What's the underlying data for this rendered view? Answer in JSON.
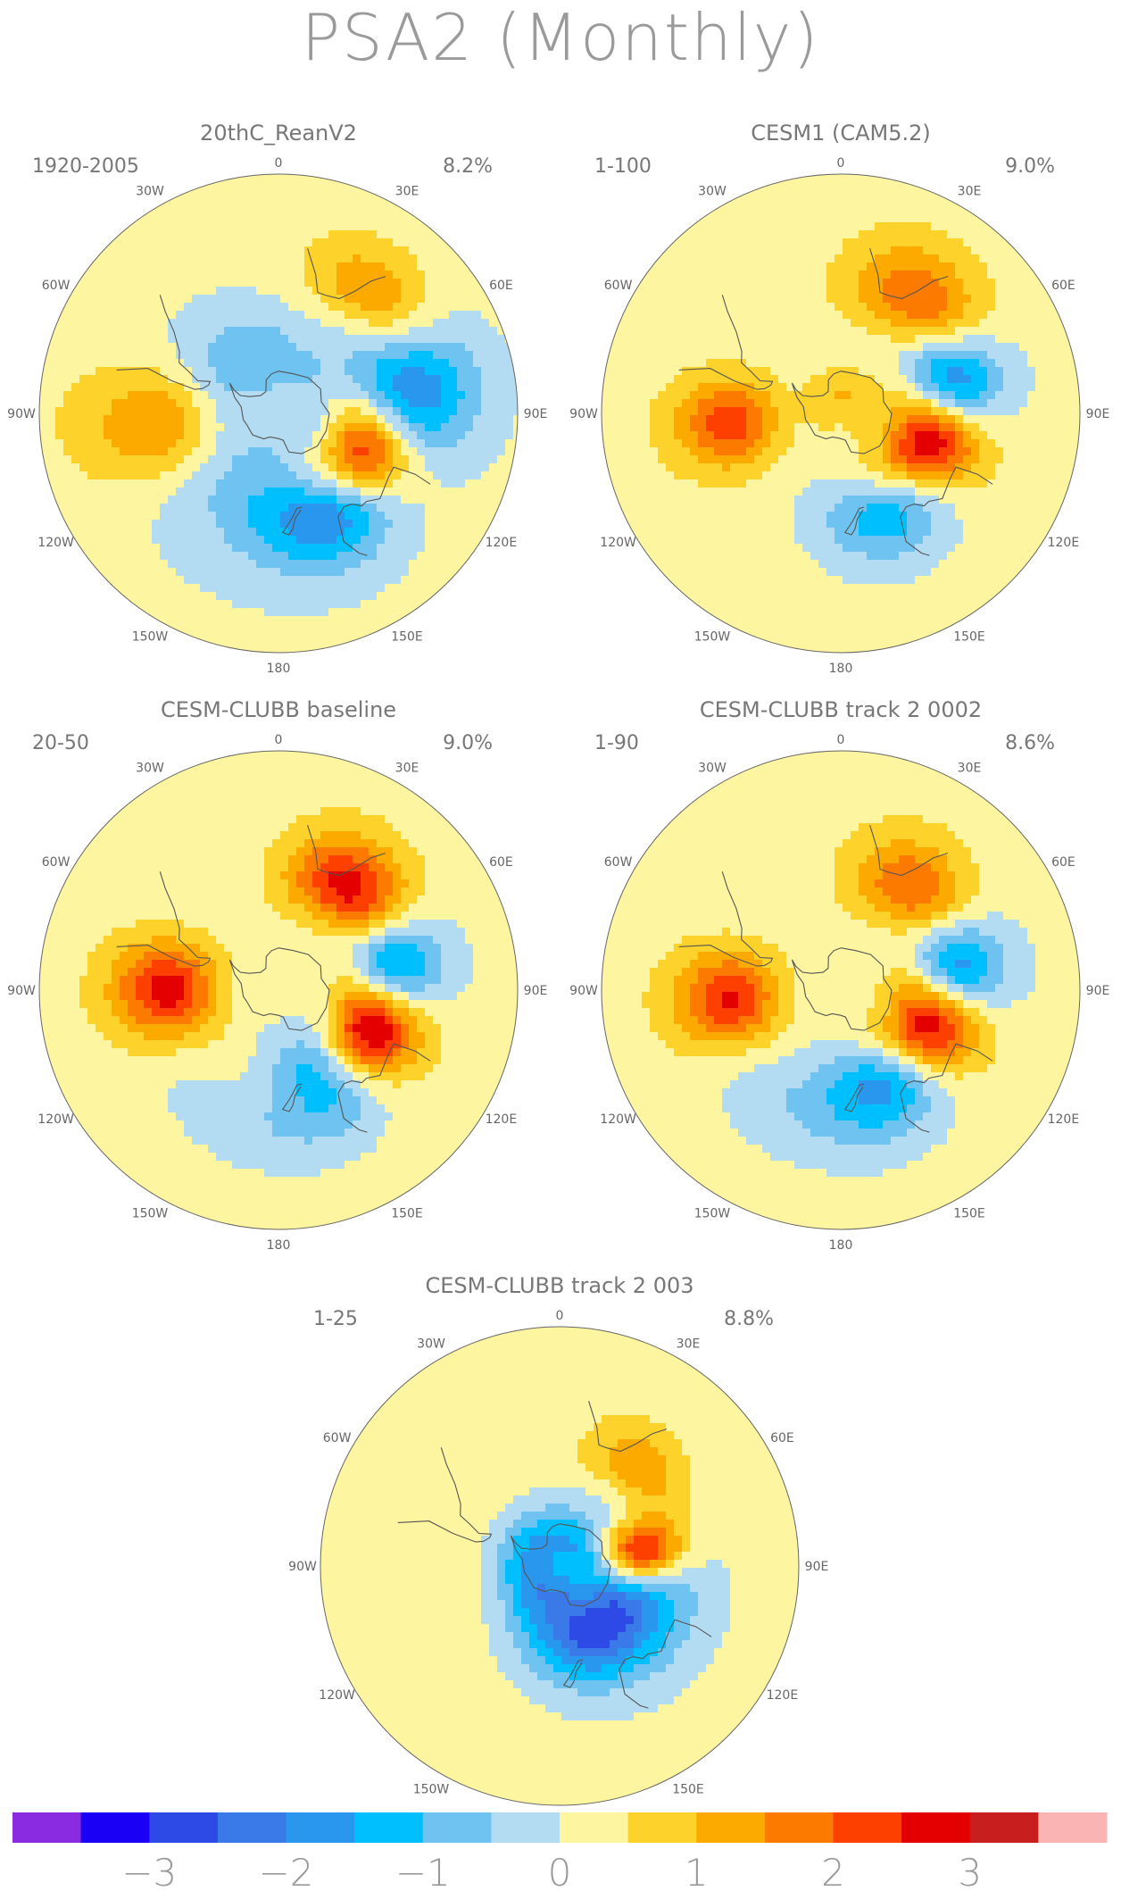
{
  "title": "PSA2 (Monthly)",
  "colors": [
    "#8a2be2",
    "#1a00f5",
    "#2d4ae6",
    "#3a7ae8",
    "#2a97ef",
    "#00bfff",
    "#6fc3f0",
    "#b3dcf2",
    "#fef5a0",
    "#fdd22a",
    "#fdaa00",
    "#fd7a00",
    "#fd3f00",
    "#e50000",
    "#c81e1e",
    "#fbb4b4"
  ],
  "colorbar": {
    "ticks": [
      "−3",
      "−2",
      "−1",
      "0",
      "1",
      "2",
      "3"
    ]
  },
  "lon_labels": [
    "0",
    "30E",
    "60E",
    "90E",
    "120E",
    "150E",
    "180",
    "150W",
    "120W",
    "90W",
    "60W",
    "30W"
  ],
  "panels": [
    {
      "title": "20thC_ReanV2",
      "period": "1920-2005",
      "pct": "8.2%",
      "blobs": [
        {
          "lon": 115,
          "lat": -45,
          "a": 3.8,
          "sx": 18,
          "sy": 13
        },
        {
          "lon": 80,
          "lat": -30,
          "a": -2.2,
          "sx": 20,
          "sy": 14
        },
        {
          "lon": 145,
          "lat": -38,
          "a": -2.0,
          "sx": 28,
          "sy": 12
        },
        {
          "lon": 40,
          "lat": -25,
          "a": 1.4,
          "sx": 20,
          "sy": 10
        },
        {
          "lon": -95,
          "lat": -40,
          "a": 1.8,
          "sx": 18,
          "sy": 20
        },
        {
          "lon": -160,
          "lat": -55,
          "a": -0.8,
          "sx": 80,
          "sy": 25
        },
        {
          "lon": -40,
          "lat": -60,
          "a": -0.7,
          "sx": 40,
          "sy": 15
        }
      ]
    },
    {
      "title": "CESM1 (CAM5.2)",
      "period": "1-100",
      "pct": "9.0%",
      "blobs": [
        {
          "lon": 105,
          "lat": -47,
          "a": 3.8,
          "sx": 20,
          "sy": 13
        },
        {
          "lon": 75,
          "lat": -40,
          "a": -3.2,
          "sx": 16,
          "sy": 13
        },
        {
          "lon": 150,
          "lat": -40,
          "a": -1.7,
          "sx": 25,
          "sy": 12
        },
        {
          "lon": 35,
          "lat": -30,
          "a": 1.8,
          "sx": 22,
          "sy": 12
        },
        {
          "lon": -95,
          "lat": -40,
          "a": 2.1,
          "sx": 15,
          "sy": 14
        },
        {
          "lon": 0,
          "lat": -80,
          "a": 0.8,
          "sx": 30,
          "sy": 8
        }
      ]
    },
    {
      "title": "CESM-CLUBB baseline",
      "period": "20-50",
      "pct": "9.0%",
      "blobs": [
        {
          "lon": 110,
          "lat": -45,
          "a": 3.8,
          "sx": 20,
          "sy": 13
        },
        {
          "lon": 80,
          "lat": -40,
          "a": -3.0,
          "sx": 16,
          "sy": 13
        },
        {
          "lon": 150,
          "lat": -50,
          "a": -1.9,
          "sx": 18,
          "sy": 14
        },
        {
          "lon": 35,
          "lat": -35,
          "a": 2.6,
          "sx": 20,
          "sy": 12
        },
        {
          "lon": -90,
          "lat": -40,
          "a": 2.6,
          "sx": 16,
          "sy": 14
        },
        {
          "lon": 175,
          "lat": -30,
          "a": -0.6,
          "sx": 40,
          "sy": 10
        }
      ]
    },
    {
      "title": "CESM-CLUBB track 2 0002",
      "period": "1-90",
      "pct": "8.6%",
      "blobs": [
        {
          "lon": 110,
          "lat": -47,
          "a": 3.9,
          "sx": 20,
          "sy": 13
        },
        {
          "lon": 80,
          "lat": -40,
          "a": -2.9,
          "sx": 16,
          "sy": 13
        },
        {
          "lon": 150,
          "lat": -45,
          "a": -1.9,
          "sx": 22,
          "sy": 13
        },
        {
          "lon": 35,
          "lat": -35,
          "a": 1.8,
          "sx": 20,
          "sy": 12
        },
        {
          "lon": -95,
          "lat": -40,
          "a": 2.5,
          "sx": 16,
          "sy": 14
        },
        {
          "lon": -170,
          "lat": -35,
          "a": -0.7,
          "sx": 40,
          "sy": 12
        }
      ]
    },
    {
      "title": "CESM-CLUBB track 2 003",
      "period": "1-25",
      "pct": "8.8%",
      "blobs": [
        {
          "lon": 80,
          "lat": -52,
          "a": 3.5,
          "sx": 12,
          "sy": 12
        },
        {
          "lon": 150,
          "lat": -58,
          "a": -2.4,
          "sx": 30,
          "sy": 14
        },
        {
          "lon": -60,
          "lat": -78,
          "a": -1.8,
          "sx": 50,
          "sy": 12
        },
        {
          "lon": 40,
          "lat": -35,
          "a": 1.4,
          "sx": 18,
          "sy": 10
        },
        {
          "lon": 110,
          "lat": -45,
          "a": -1.2,
          "sx": 40,
          "sy": 15
        }
      ]
    }
  ]
}
